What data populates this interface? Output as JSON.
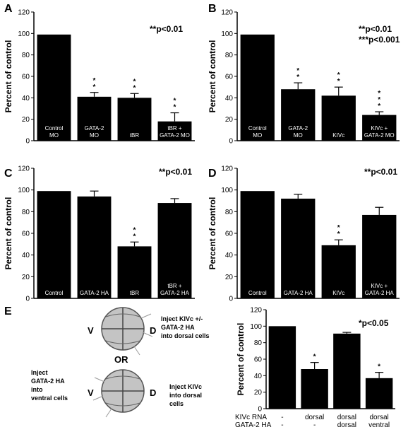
{
  "chart_data": [
    {
      "panel": "A",
      "type": "bar",
      "ylabel": "Percent of control",
      "ylim": [
        0,
        120
      ],
      "yticks": [
        0,
        20,
        40,
        60,
        80,
        100,
        120
      ],
      "annotation": "**p<0.01",
      "categories": [
        [
          "Control",
          "MO"
        ],
        [
          "GATA-2",
          "MO"
        ],
        [
          "tBR"
        ],
        [
          "tBR +",
          "GATA-2 MO"
        ]
      ],
      "values": [
        99,
        41,
        40,
        18
      ],
      "errors": [
        0.5,
        4,
        4,
        8
      ],
      "stars": [
        "",
        "**",
        "**",
        "**"
      ]
    },
    {
      "panel": "B",
      "type": "bar",
      "ylabel": "Percent of control",
      "ylim": [
        0,
        120
      ],
      "yticks": [
        0,
        20,
        40,
        60,
        80,
        100,
        120
      ],
      "annotation": [
        "**p<0.01",
        "***p<0.001"
      ],
      "categories": [
        [
          "Control",
          "MO"
        ],
        [
          "GATA-2",
          "MO"
        ],
        [
          "KIVc"
        ],
        [
          "KIVc +",
          "GATA-2 MO"
        ]
      ],
      "values": [
        99,
        48,
        42,
        24
      ],
      "errors": [
        0.5,
        6,
        8,
        3
      ],
      "stars": [
        "",
        "**",
        "**",
        "***"
      ]
    },
    {
      "panel": "C",
      "type": "bar",
      "ylabel": "Percent of control",
      "ylim": [
        0,
        120
      ],
      "yticks": [
        0,
        20,
        40,
        60,
        80,
        100,
        120
      ],
      "annotation": "**p<0.01",
      "categories": [
        [
          "Control"
        ],
        [
          "GATA-2 HA"
        ],
        [
          "tBR"
        ],
        [
          "tBR +",
          "GATA-2 HA"
        ]
      ],
      "values": [
        99,
        94,
        48,
        88
      ],
      "errors": [
        0.5,
        5,
        4,
        4
      ],
      "stars": [
        "",
        "",
        "**",
        ""
      ]
    },
    {
      "panel": "D",
      "type": "bar",
      "ylabel": "Percent of control",
      "ylim": [
        0,
        120
      ],
      "yticks": [
        0,
        20,
        40,
        60,
        80,
        100,
        120
      ],
      "annotation": "**p<0.01",
      "categories": [
        [
          "Control"
        ],
        [
          "GATA-2 HA"
        ],
        [
          "KIVc"
        ],
        [
          "KIVc +",
          "GATA-2 HA"
        ]
      ],
      "values": [
        99,
        92,
        49,
        77
      ],
      "errors": [
        0.5,
        4,
        5,
        7
      ],
      "stars": [
        "",
        "",
        "**",
        ""
      ]
    },
    {
      "panel": "E",
      "type": "bar",
      "ylabel": "Percent of control",
      "ylim": [
        0,
        120
      ],
      "yticks": [
        0,
        20,
        40,
        60,
        80,
        100,
        120
      ],
      "annotation": "*p<0.05",
      "row_labels": [
        "KIVc RNA",
        "GATA-2 HA"
      ],
      "categories": [
        [
          "-",
          "-"
        ],
        [
          "dorsal",
          "-"
        ],
        [
          "dorsal",
          "dorsal"
        ],
        [
          "dorsal",
          "ventral"
        ]
      ],
      "values": [
        100,
        48,
        91,
        37
      ],
      "errors": [
        0,
        8,
        1.5,
        7
      ],
      "stars": [
        "",
        "*",
        "",
        "*"
      ]
    }
  ],
  "embryo_text": {
    "letter": "E",
    "top_text": [
      "Inject KIVc +/-",
      "GATA-2 HA",
      "into dorsal cells"
    ],
    "or_text": "OR",
    "bottom_left_text": [
      "Inject",
      "GATA-2 HA",
      "into",
      "ventral cells"
    ],
    "bottom_right_text": [
      "Inject  KIVc",
      "into dorsal",
      "cells"
    ],
    "v": "V",
    "d": "D"
  }
}
